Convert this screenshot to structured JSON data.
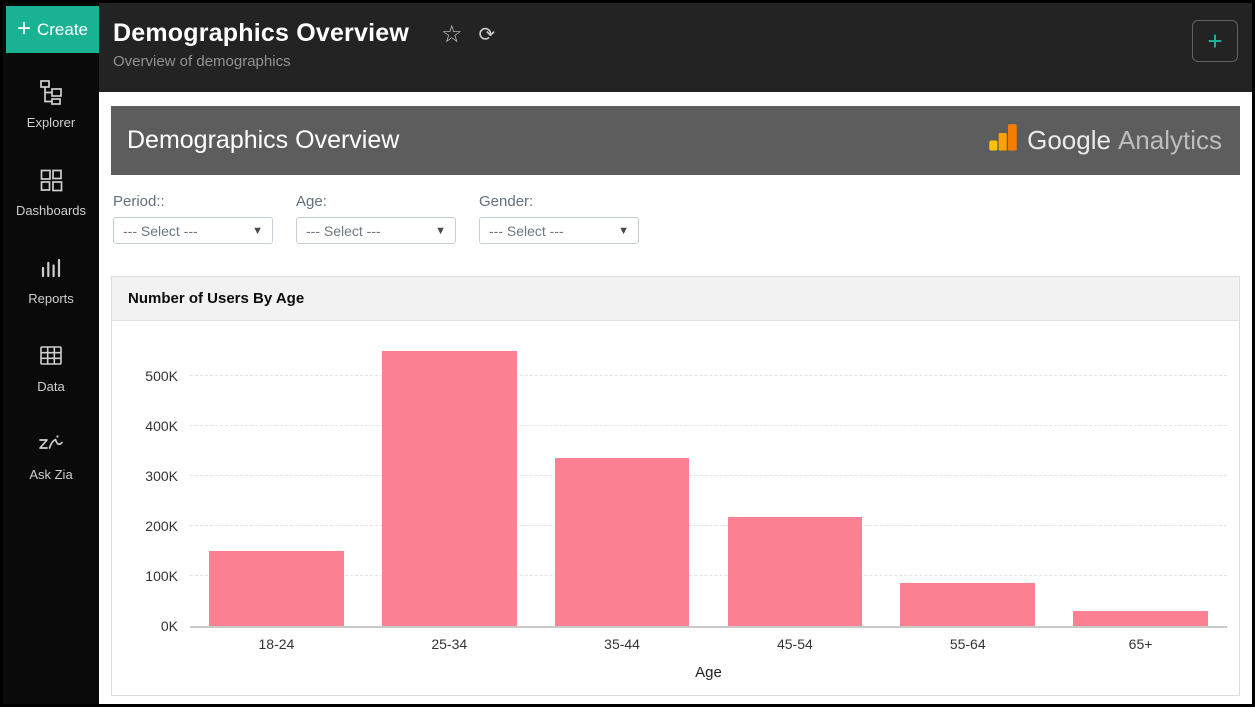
{
  "sidebar": {
    "create_label": "Create",
    "create_plus": "+",
    "items": [
      {
        "label": "Explorer",
        "icon": "explorer-icon"
      },
      {
        "label": "Dashboards",
        "icon": "dashboards-icon"
      },
      {
        "label": "Reports",
        "icon": "reports-icon"
      },
      {
        "label": "Data",
        "icon": "data-icon"
      },
      {
        "label": "Ask Zia",
        "icon": "ask-zia-icon"
      }
    ]
  },
  "header": {
    "title": "Demographics Overview",
    "subtitle": "Overview of demographics",
    "star_icon": "☆",
    "refresh_icon": "⟳",
    "add_button": "+"
  },
  "banner": {
    "title": "Demographics Overview",
    "brand_google": "Google",
    "brand_analytics": "Analytics"
  },
  "filters": [
    {
      "label": "Period::",
      "value": "--- Select ---",
      "caret": "▼"
    },
    {
      "label": "Age:",
      "value": "--- Select ---",
      "caret": "▼"
    },
    {
      "label": "Gender:",
      "value": "--- Select ---",
      "caret": "▼"
    }
  ],
  "chart_data": {
    "type": "bar",
    "title": "Number of Users By Age",
    "categories": [
      "18-24",
      "25-34",
      "35-44",
      "45-54",
      "55-64",
      "65+"
    ],
    "values": [
      150000,
      550000,
      335000,
      218000,
      85000,
      30000
    ],
    "xlabel": "Age",
    "ylabel": "",
    "ylim": [
      0,
      562000
    ],
    "ytick_interval": 100000,
    "ytick_labels": [
      "0K",
      "100K",
      "200K",
      "300K",
      "400K",
      "500K"
    ],
    "grid": true,
    "legend": false,
    "bar_color": "#fa8092"
  },
  "colors": {
    "accent_teal": "#19b394",
    "topbar_bg": "#232323",
    "sidebar_bg": "#0a0a0a",
    "banner_bg": "#5d5d5d",
    "bar_pink": "#fa8092",
    "ga_orange": "#f57e02",
    "ga_amber": "#ffa200",
    "ga_yellow": "#ffc20a"
  }
}
